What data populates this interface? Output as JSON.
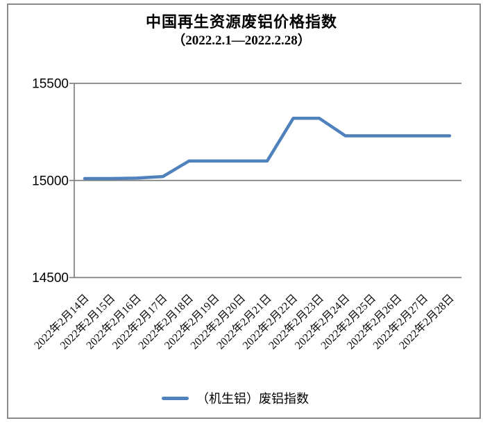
{
  "window": {
    "background": "#ffffff",
    "frame_color": "#8a8a8a"
  },
  "header": {
    "title": "中国再生资源废铝价格指数",
    "subtitle": "（2022.2.1—2022.2.28）"
  },
  "legend": {
    "label": "（机生铝）废铝指数",
    "swatch_color": "#4F81BD"
  },
  "colors": {
    "series_line": "#4F81BD",
    "axis": "#7F7F7F",
    "text": "#000000"
  },
  "chart_data": {
    "type": "line",
    "title": "中国再生资源废铝价格指数",
    "subtitle": "（2022.2.1—2022.2.28）",
    "xlabel": "",
    "ylabel": "",
    "ylim": [
      14500,
      15500
    ],
    "yticks": [
      14500,
      15000,
      15500
    ],
    "grid": "horizontal-major",
    "legend_position": "bottom-center",
    "x_label_rotation_deg": -45,
    "categories": [
      "2022年2月14日",
      "2022年2月15日",
      "2022年2月16日",
      "2022年2月17日",
      "2022年2月18日",
      "2022年2月19日",
      "2022年2月20日",
      "2022年2月21日",
      "2022年2月22日",
      "2022年2月23日",
      "2022年2月24日",
      "2022年2月25日",
      "2022年2月26日",
      "2022年2月27日",
      "2022年2月28日"
    ],
    "series": [
      {
        "name": "（机生铝）废铝指数",
        "color": "#4F81BD",
        "values": [
          15010,
          15010,
          15012,
          15020,
          15100,
          15100,
          15100,
          15100,
          15320,
          15320,
          15230,
          15230,
          15230,
          15230,
          15230
        ]
      }
    ]
  }
}
